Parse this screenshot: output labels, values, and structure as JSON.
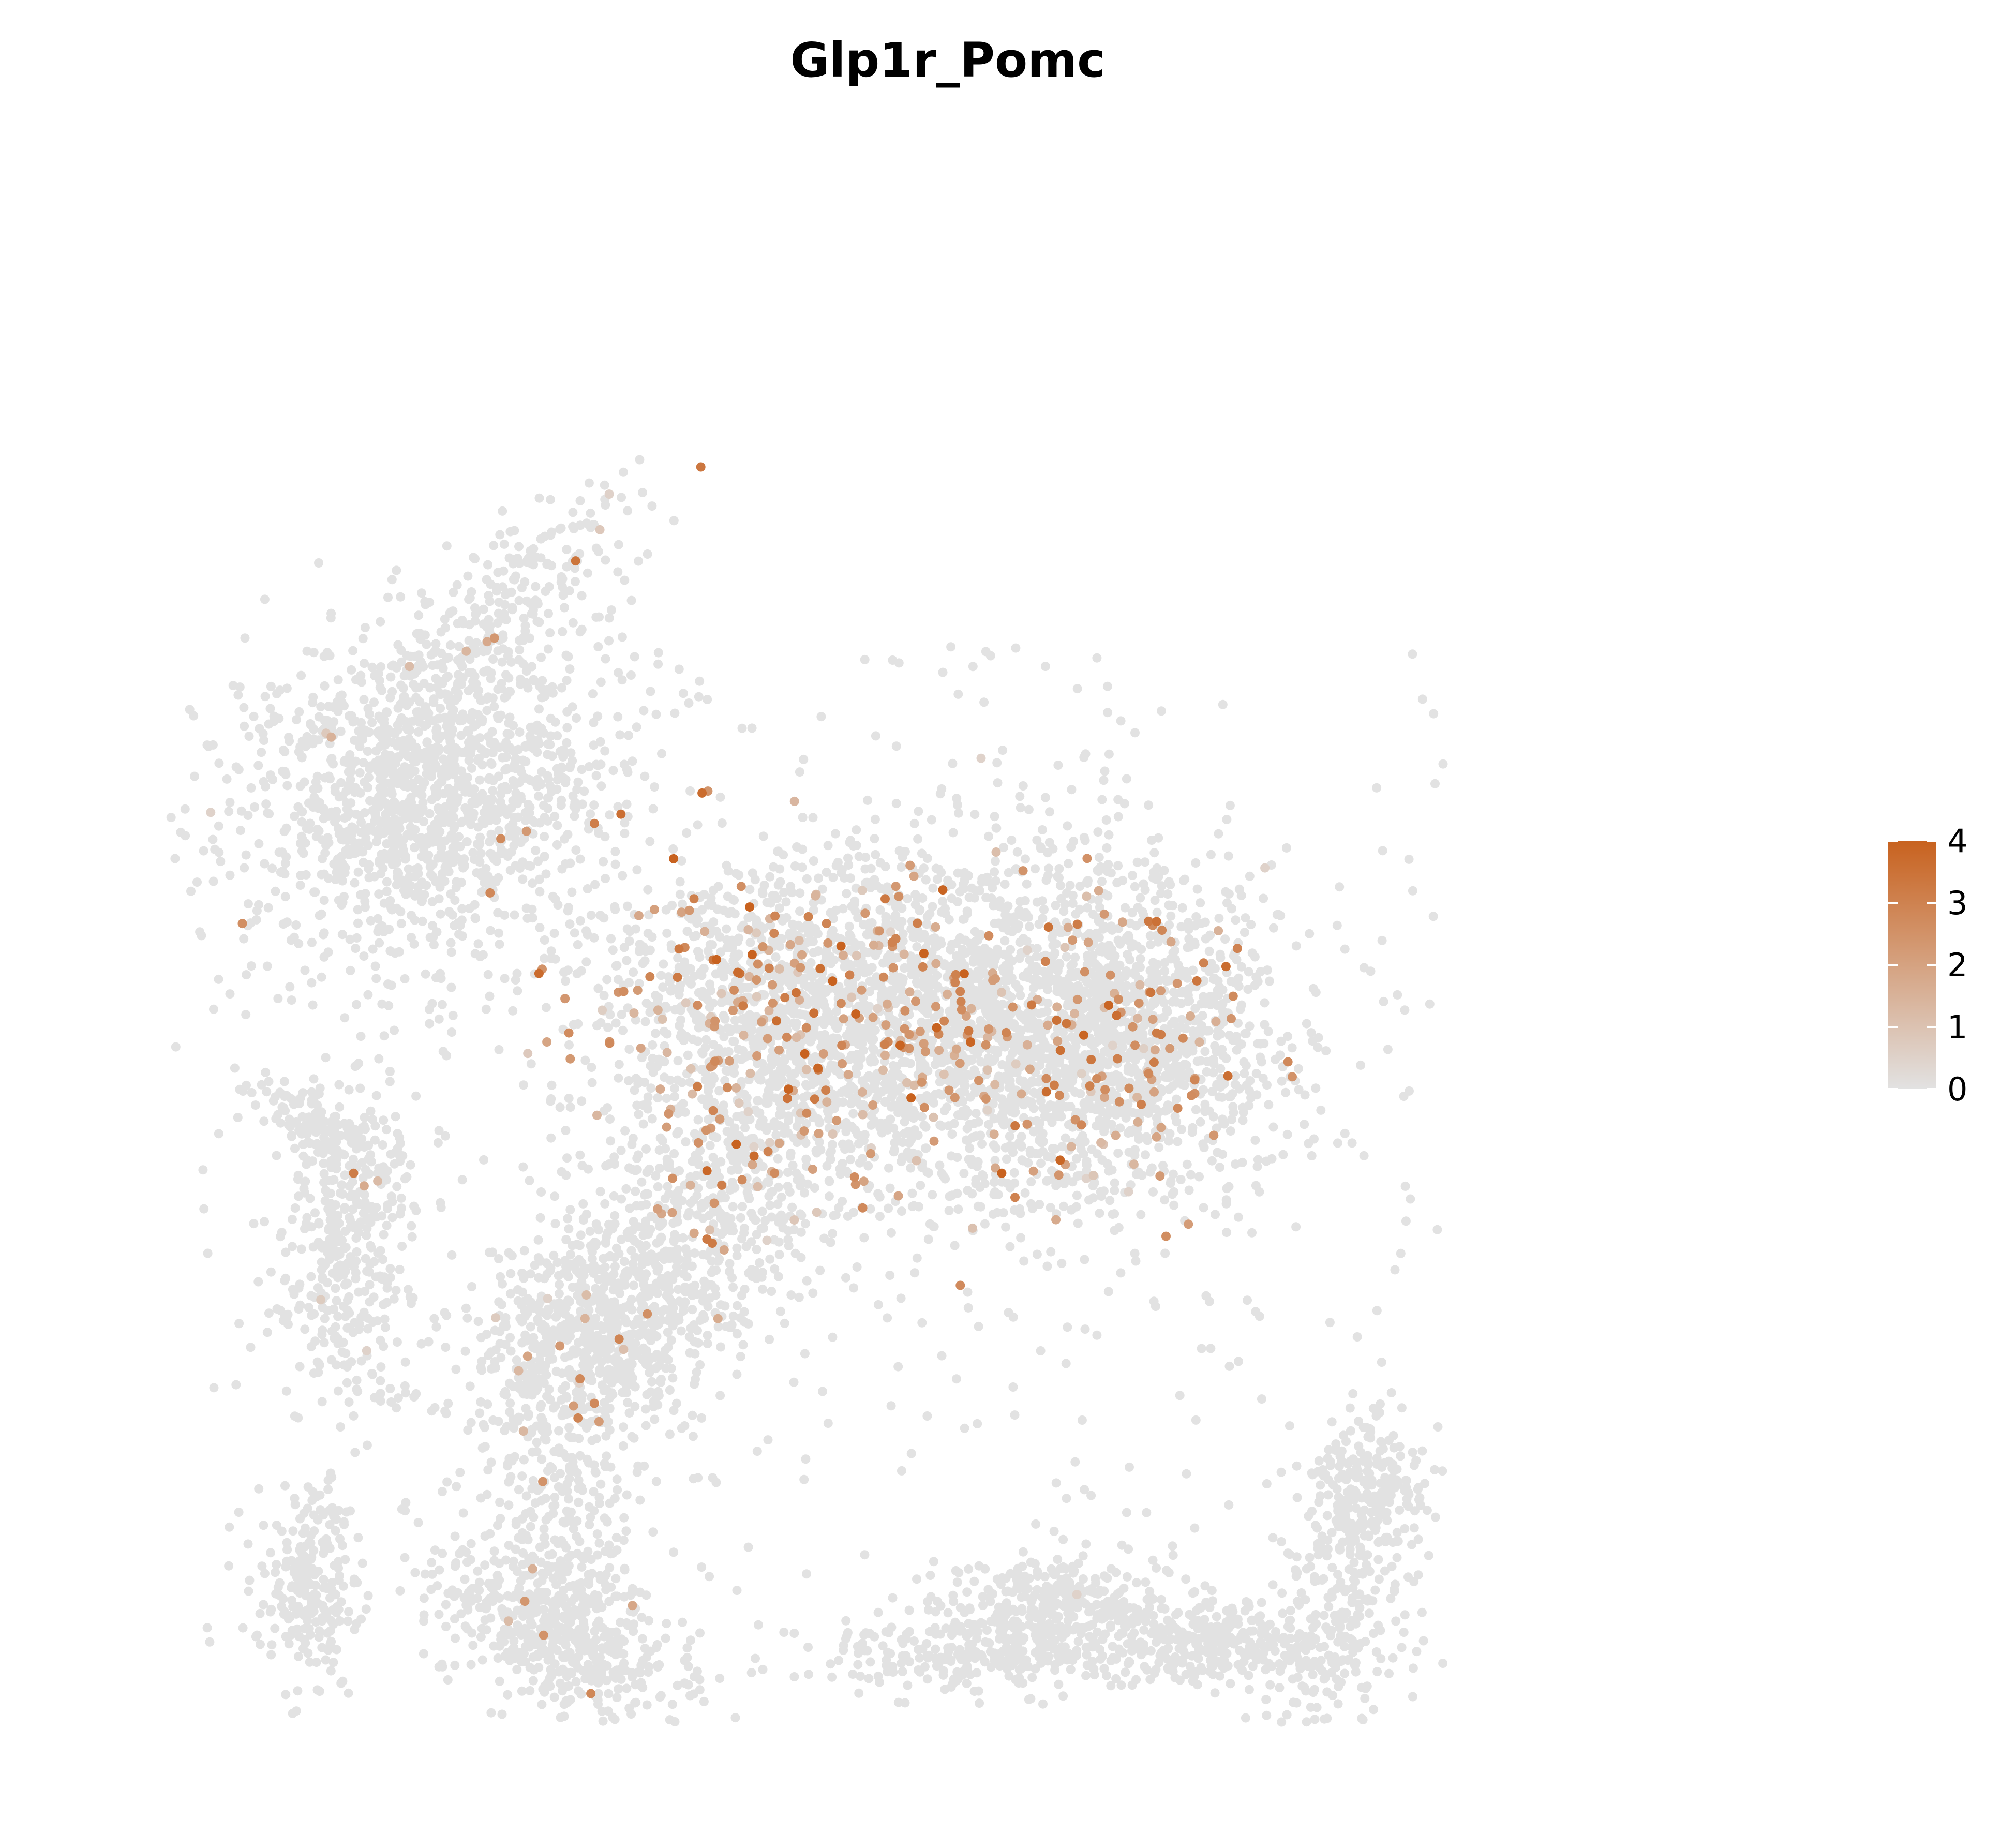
{
  "chart_data": {
    "type": "scatter",
    "title": "Glp1r_Pomc",
    "xlabel": "",
    "ylabel": "",
    "axes_visible": false,
    "grid": false,
    "xlim": [
      0,
      100
    ],
    "ylim": [
      0,
      100
    ],
    "color_scale": {
      "low_color": "#e2e2e2",
      "high_color": "#c8621f",
      "min": 0,
      "max": 4,
      "ticks": [
        "0",
        "1",
        "2",
        "3",
        "4"
      ],
      "legend_placement": "right"
    },
    "clusters": [
      {
        "cx": 20,
        "cy": 69,
        "sx": 5.5,
        "sy": 6.5,
        "rot": -35,
        "n": 1400,
        "expr_prob": 0.01,
        "expr_mean": 1.5
      },
      {
        "cx": 25,
        "cy": 83,
        "sx": 2.0,
        "sy": 6.0,
        "rot": -45,
        "n": 220,
        "expr_prob": 0.03,
        "expr_mean": 1.8
      },
      {
        "cx": 14,
        "cy": 35,
        "sx": 2.3,
        "sy": 6.0,
        "rot": 0,
        "n": 380,
        "expr_prob": 0.01,
        "expr_mean": 1.2
      },
      {
        "cx": 13,
        "cy": 44,
        "sx": 3.0,
        "sy": 1.2,
        "rot": -30,
        "n": 140,
        "expr_prob": 0.0,
        "expr_mean": 0
      },
      {
        "cx": 12,
        "cy": 10,
        "sx": 1.4,
        "sy": 3.5,
        "rot": 0,
        "n": 220,
        "expr_prob": 0.0,
        "expr_mean": 0
      },
      {
        "cx": 28,
        "cy": 12,
        "sx": 2.5,
        "sy": 10.0,
        "rot": 5,
        "n": 420,
        "expr_prob": 0.003,
        "expr_mean": 1.0
      },
      {
        "cx": 28,
        "cy": 7,
        "sx": 4.5,
        "sy": 2.2,
        "rot": -25,
        "n": 420,
        "expr_prob": 0.01,
        "expr_mean": 1.5
      },
      {
        "cx": 30,
        "cy": 29,
        "sx": 3.5,
        "sy": 4.0,
        "rot": 0,
        "n": 480,
        "expr_prob": 0.03,
        "expr_mean": 2.0
      },
      {
        "cx": 36,
        "cy": 35,
        "sx": 3.5,
        "sy": 7.5,
        "rot": -35,
        "n": 650,
        "expr_prob": 0.04,
        "expr_mean": 2.0
      },
      {
        "cx": 44,
        "cy": 52,
        "sx": 7.0,
        "sy": 6.0,
        "rot": 0,
        "n": 1500,
        "expr_prob": 0.14,
        "expr_mean": 2.3
      },
      {
        "cx": 57,
        "cy": 52,
        "sx": 8.0,
        "sy": 7.0,
        "rot": 0,
        "n": 1500,
        "expr_prob": 0.05,
        "expr_mean": 2.3
      },
      {
        "cx": 64,
        "cy": 50,
        "sx": 5.0,
        "sy": 5.5,
        "rot": 0,
        "n": 900,
        "expr_prob": 0.08,
        "expr_mean": 2.2
      },
      {
        "cx": 60,
        "cy": 8,
        "sx": 3.5,
        "sy": 2.2,
        "rot": 0,
        "n": 350,
        "expr_prob": 0.005,
        "expr_mean": 1.5
      },
      {
        "cx": 54,
        "cy": 5,
        "sx": 5.0,
        "sy": 1.5,
        "rot": 0,
        "n": 220,
        "expr_prob": 0.0,
        "expr_mean": 0
      },
      {
        "cx": 70,
        "cy": 6,
        "sx": 3.0,
        "sy": 1.5,
        "rot": 0,
        "n": 260,
        "expr_prob": 0.0,
        "expr_mean": 0
      },
      {
        "cx": 80,
        "cy": 17,
        "sx": 1.8,
        "sy": 3.0,
        "rot": 0,
        "n": 260,
        "expr_prob": 0.0,
        "expr_mean": 0
      },
      {
        "cx": 78,
        "cy": 7,
        "sx": 2.5,
        "sy": 4.0,
        "rot": 0,
        "n": 220,
        "expr_prob": 0.0,
        "expr_mean": 0
      }
    ],
    "background_points": {
      "n": 500,
      "xmin": 5,
      "xmax": 85,
      "ymin": 3,
      "ymax": 80,
      "expr_prob": 0.0
    }
  }
}
